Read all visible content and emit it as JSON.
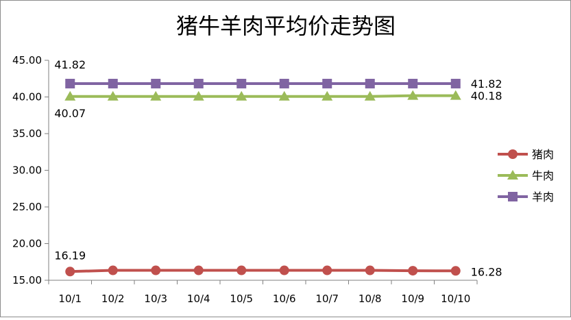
{
  "chart_data": {
    "type": "line",
    "title": "猪牛羊肉平均价走势图",
    "xlabel": "",
    "ylabel": "",
    "categories": [
      "10/1",
      "10/2",
      "10/3",
      "10/4",
      "10/5",
      "10/6",
      "10/7",
      "10/8",
      "10/9",
      "10/10"
    ],
    "ylim": [
      15,
      45
    ],
    "yticks": [
      "15.00",
      "20.00",
      "25.00",
      "30.00",
      "35.00",
      "40.00",
      "45.00"
    ],
    "grid": false,
    "legend_position": "right",
    "series": [
      {
        "name": "猪肉",
        "color": "#c0504d",
        "marker": "circle",
        "values": [
          16.19,
          16.35,
          16.35,
          16.35,
          16.35,
          16.35,
          16.35,
          16.35,
          16.3,
          16.28
        ],
        "first_label": "16.19",
        "last_label": "16.28"
      },
      {
        "name": "牛肉",
        "color": "#9bbb59",
        "marker": "triangle",
        "values": [
          40.07,
          40.07,
          40.07,
          40.07,
          40.07,
          40.07,
          40.07,
          40.07,
          40.18,
          40.18
        ],
        "first_label": "40.07",
        "last_label": "40.18"
      },
      {
        "name": "羊肉",
        "color": "#8064a2",
        "marker": "square",
        "values": [
          41.82,
          41.82,
          41.82,
          41.82,
          41.82,
          41.82,
          41.82,
          41.82,
          41.82,
          41.82
        ],
        "first_label": "41.82",
        "last_label": "41.82"
      }
    ]
  }
}
